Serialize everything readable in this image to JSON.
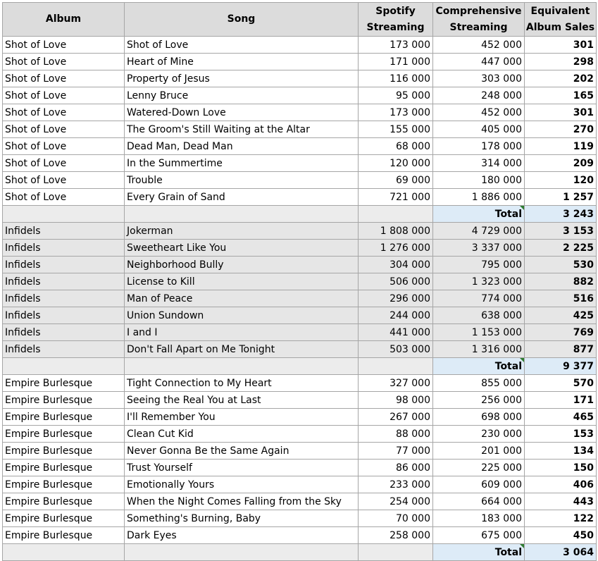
{
  "headers": {
    "album": "Album",
    "song": "Song",
    "spotify_1": "Spotify",
    "spotify_2": "Streaming",
    "comp_1": "Comprehensive",
    "comp_2": "Streaming",
    "eas_1": "Equivalent",
    "eas_2": "Album Sales"
  },
  "total_label": "Total",
  "groups": [
    {
      "album": "Shot of Love",
      "shaded": false,
      "total": "3 243",
      "rows": [
        {
          "song": "Shot of Love",
          "spotify": "173 000",
          "comprehensive": "452 000",
          "eas": "301"
        },
        {
          "song": "Heart of Mine",
          "spotify": "171 000",
          "comprehensive": "447 000",
          "eas": "298"
        },
        {
          "song": "Property of Jesus",
          "spotify": "116 000",
          "comprehensive": "303 000",
          "eas": "202"
        },
        {
          "song": "Lenny Bruce",
          "spotify": "95 000",
          "comprehensive": "248 000",
          "eas": "165"
        },
        {
          "song": "Watered-Down Love",
          "spotify": "173 000",
          "comprehensive": "452 000",
          "eas": "301"
        },
        {
          "song": "The Groom's Still Waiting at the Altar",
          "spotify": "155 000",
          "comprehensive": "405 000",
          "eas": "270"
        },
        {
          "song": "Dead Man, Dead Man",
          "spotify": "68 000",
          "comprehensive": "178 000",
          "eas": "119"
        },
        {
          "song": "In the Summertime",
          "spotify": "120 000",
          "comprehensive": "314 000",
          "eas": "209"
        },
        {
          "song": "Trouble",
          "spotify": "69 000",
          "comprehensive": "180 000",
          "eas": "120"
        },
        {
          "song": "Every Grain of Sand",
          "spotify": "721 000",
          "comprehensive": "1 886 000",
          "eas": "1 257"
        }
      ]
    },
    {
      "album": "Infidels",
      "shaded": true,
      "total": "9 377",
      "rows": [
        {
          "song": "Jokerman",
          "spotify": "1 808 000",
          "comprehensive": "4 729 000",
          "eas": "3 153"
        },
        {
          "song": "Sweetheart Like You",
          "spotify": "1 276 000",
          "comprehensive": "3 337 000",
          "eas": "2 225"
        },
        {
          "song": "Neighborhood Bully",
          "spotify": "304 000",
          "comprehensive": "795 000",
          "eas": "530"
        },
        {
          "song": "License to Kill",
          "spotify": "506 000",
          "comprehensive": "1 323 000",
          "eas": "882"
        },
        {
          "song": "Man of Peace",
          "spotify": "296 000",
          "comprehensive": "774 000",
          "eas": "516"
        },
        {
          "song": "Union Sundown",
          "spotify": "244 000",
          "comprehensive": "638 000",
          "eas": "425"
        },
        {
          "song": "I and I",
          "spotify": "441 000",
          "comprehensive": "1 153 000",
          "eas": "769"
        },
        {
          "song": "Don't Fall Apart on Me Tonight",
          "spotify": "503 000",
          "comprehensive": "1 316 000",
          "eas": "877"
        }
      ]
    },
    {
      "album": "Empire Burlesque",
      "shaded": false,
      "total": "3 064",
      "rows": [
        {
          "song": "Tight Connection to My Heart",
          "spotify": "327 000",
          "comprehensive": "855 000",
          "eas": "570"
        },
        {
          "song": "Seeing the Real You at Last",
          "spotify": "98 000",
          "comprehensive": "256 000",
          "eas": "171"
        },
        {
          "song": "I'll Remember You",
          "spotify": "267 000",
          "comprehensive": "698 000",
          "eas": "465"
        },
        {
          "song": "Clean Cut Kid",
          "spotify": "88 000",
          "comprehensive": "230 000",
          "eas": "153"
        },
        {
          "song": "Never Gonna Be the Same Again",
          "spotify": "77 000",
          "comprehensive": "201 000",
          "eas": "134"
        },
        {
          "song": "Trust Yourself",
          "spotify": "86 000",
          "comprehensive": "225 000",
          "eas": "150"
        },
        {
          "song": "Emotionally Yours",
          "spotify": "233 000",
          "comprehensive": "609 000",
          "eas": "406"
        },
        {
          "song": "When the Night Comes Falling from the Sky",
          "spotify": "254 000",
          "comprehensive": "664 000",
          "eas": "443"
        },
        {
          "song": "Something's Burning, Baby",
          "spotify": "70 000",
          "comprehensive": "183 000",
          "eas": "122"
        },
        {
          "song": "Dark Eyes",
          "spotify": "258 000",
          "comprehensive": "675 000",
          "eas": "450"
        }
      ]
    }
  ]
}
